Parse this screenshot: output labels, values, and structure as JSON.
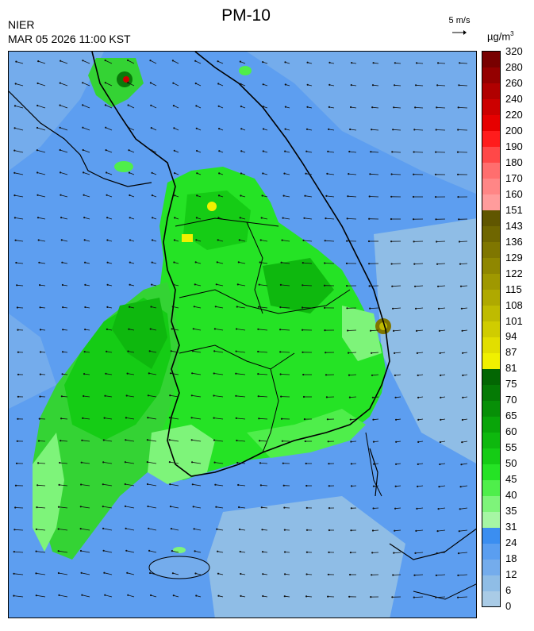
{
  "header": {
    "agency": "NIER",
    "timestamp": "MAR 05 2026 11:00 KST",
    "title": "PM-10",
    "wind_reference": "5 m/s",
    "unit_base": "µg/m",
    "unit_exp": "3"
  },
  "legend": {
    "levels": [
      "0",
      "6",
      "12",
      "18",
      "24",
      "31",
      "35",
      "40",
      "45",
      "50",
      "55",
      "60",
      "65",
      "70",
      "75",
      "81",
      "87",
      "94",
      "101",
      "108",
      "115",
      "122",
      "129",
      "136",
      "143",
      "151",
      "160",
      "170",
      "180",
      "190",
      "200",
      "220",
      "240",
      "260",
      "280",
      "320"
    ],
    "colors": [
      "#a9cbe6",
      "#8fbde6",
      "#74acec",
      "#5a9ef0",
      "#3b8ef0",
      "#a6f6a4",
      "#7ef47a",
      "#4fee4b",
      "#25e325",
      "#15cc15",
      "#0eb80e",
      "#09a509",
      "#078f07",
      "#057a05",
      "#036603",
      "#f0f000",
      "#e2de00",
      "#d0cc00",
      "#bfbb00",
      "#afa900",
      "#9f9800",
      "#8f8700",
      "#7f7600",
      "#6f6600",
      "#605600",
      "#ff9c9c",
      "#ff8686",
      "#ff6e6e",
      "#ff4848",
      "#ff1c1c",
      "#e60000",
      "#cc0000",
      "#b00000",
      "#940000",
      "#780000"
    ]
  },
  "map": {
    "sea_color": "#5d9ef0",
    "land_green": "#34d334",
    "coast_color": "#000000"
  }
}
